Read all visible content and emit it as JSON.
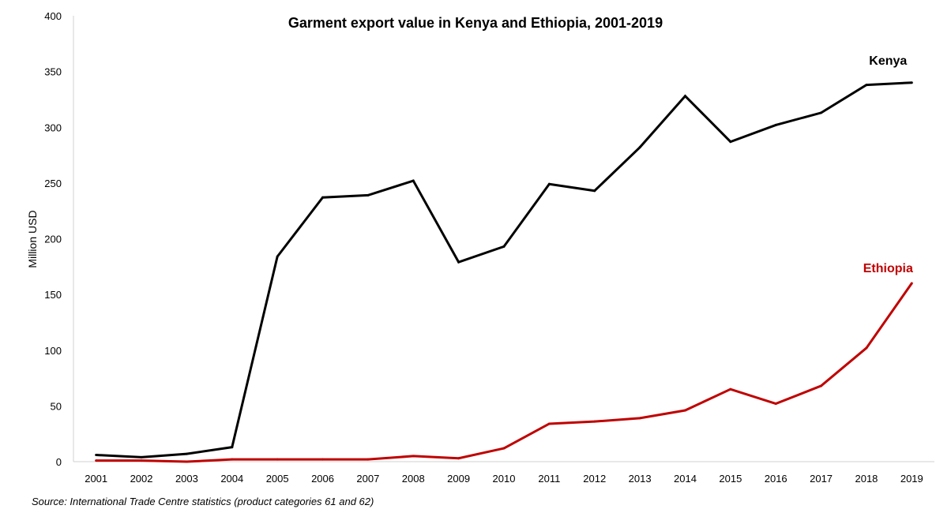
{
  "chart_data": {
    "type": "line",
    "title": "Garment export value in Kenya and Ethiopia, 2001-2019",
    "ylabel": "Million USD",
    "xlabel": "",
    "x": [
      "2001",
      "2002",
      "2003",
      "2004",
      "2005",
      "2006",
      "2007",
      "2008",
      "2009",
      "2010",
      "2011",
      "2012",
      "2013",
      "2014",
      "2015",
      "2016",
      "2017",
      "2018",
      "2019"
    ],
    "ylim": [
      0,
      400
    ],
    "yticks": [
      "0",
      "50",
      "100",
      "150",
      "200",
      "250",
      "300",
      "350",
      "400"
    ],
    "grid": false,
    "series": [
      {
        "name": "Kenya",
        "color": "#000000",
        "values": [
          6,
          4,
          7,
          13,
          184,
          237,
          239,
          252,
          179,
          193,
          249,
          243,
          282,
          328,
          287,
          302,
          313,
          338,
          340
        ]
      },
      {
        "name": "Ethiopia",
        "color": "#c00000",
        "values": [
          1,
          1,
          0,
          2,
          2,
          2,
          2,
          5,
          3,
          12,
          34,
          36,
          39,
          46,
          65,
          52,
          68,
          102,
          160
        ]
      }
    ],
    "source": "Source: International Trade Centre statistics (product categories 61 and 62)"
  }
}
